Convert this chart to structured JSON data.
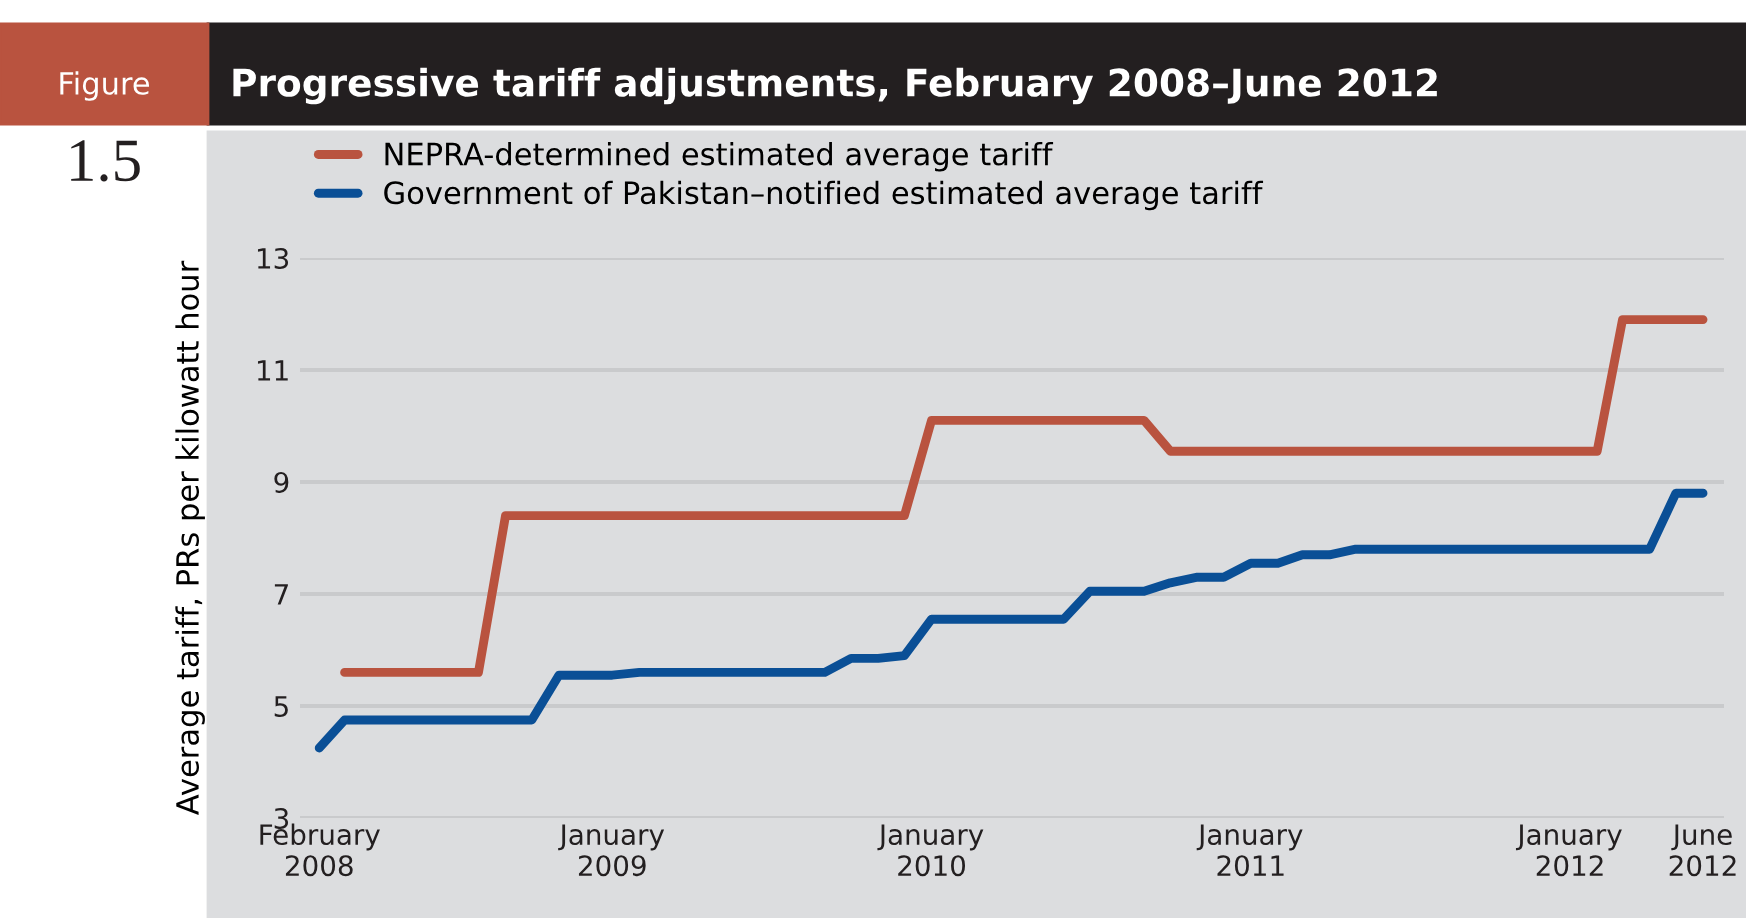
{
  "chart_data": {
    "type": "line",
    "title": "Progressive tariff adjustments, February 2008–June 2012",
    "annotations": [
      "Figure",
      "1.5"
    ],
    "ylabel": "Average tariff, PRs per kilowatt hour",
    "series": [
      {
        "name": "NEPRA-determined estimated average tariff",
        "color": "#b9533f",
        "x": [
          "2008-03",
          "2008-04",
          "2008-05",
          "2008-06",
          "2008-07",
          "2008-08",
          "2008-09",
          "2008-10",
          "2008-11",
          "2008-12",
          "2009-01",
          "2009-02",
          "2009-03",
          "2009-04",
          "2009-05",
          "2009-06",
          "2009-07",
          "2009-08",
          "2009-09",
          "2009-10",
          "2009-11",
          "2009-12",
          "2010-01",
          "2010-02",
          "2010-03",
          "2010-04",
          "2010-05",
          "2010-06",
          "2010-07",
          "2010-08",
          "2010-09",
          "2010-10",
          "2010-11",
          "2010-12",
          "2011-01",
          "2011-02",
          "2011-03",
          "2011-04",
          "2011-05",
          "2011-06",
          "2011-07",
          "2011-08",
          "2011-09",
          "2011-10",
          "2011-11",
          "2011-12",
          "2012-01",
          "2012-02",
          "2012-03",
          "2012-04",
          "2012-05",
          "2012-06"
        ],
        "values": [
          5.6,
          5.6,
          5.6,
          5.6,
          5.6,
          5.6,
          8.4,
          8.4,
          8.4,
          8.4,
          8.4,
          8.4,
          8.4,
          8.4,
          8.4,
          8.4,
          8.4,
          8.4,
          8.4,
          8.4,
          8.4,
          8.4,
          10.1,
          10.1,
          10.1,
          10.1,
          10.1,
          10.1,
          10.1,
          10.1,
          10.1,
          9.55,
          9.55,
          9.55,
          9.55,
          9.55,
          9.55,
          9.55,
          9.55,
          9.55,
          9.55,
          9.55,
          9.55,
          9.55,
          9.55,
          9.55,
          9.55,
          9.55,
          11.9,
          11.9,
          11.9,
          11.9
        ]
      },
      {
        "name": "Government of Pakistan–notified estimated average tariff",
        "color": "#0a4f96",
        "x": [
          "2008-02",
          "2008-03",
          "2008-04",
          "2008-05",
          "2008-06",
          "2008-07",
          "2008-08",
          "2008-09",
          "2008-10",
          "2008-11",
          "2008-12",
          "2009-01",
          "2009-02",
          "2009-03",
          "2009-04",
          "2009-05",
          "2009-06",
          "2009-07",
          "2009-08",
          "2009-09",
          "2009-10",
          "2009-11",
          "2009-12",
          "2010-01",
          "2010-02",
          "2010-03",
          "2010-04",
          "2010-05",
          "2010-06",
          "2010-07",
          "2010-08",
          "2010-09",
          "2010-10",
          "2010-11",
          "2010-12",
          "2011-01",
          "2011-02",
          "2011-03",
          "2011-04",
          "2011-05",
          "2011-06",
          "2011-07",
          "2011-08",
          "2011-09",
          "2011-10",
          "2011-11",
          "2011-12",
          "2012-01",
          "2012-02",
          "2012-03",
          "2012-04",
          "2012-05",
          "2012-06"
        ],
        "values": [
          4.25,
          4.75,
          4.75,
          4.75,
          4.75,
          4.75,
          4.75,
          4.75,
          4.75,
          5.55,
          5.55,
          5.55,
          5.6,
          5.6,
          5.6,
          5.6,
          5.6,
          5.6,
          5.6,
          5.6,
          5.85,
          5.85,
          5.9,
          6.55,
          6.55,
          6.55,
          6.55,
          6.55,
          6.55,
          7.05,
          7.05,
          7.05,
          7.2,
          7.3,
          7.3,
          7.55,
          7.55,
          7.7,
          7.7,
          7.8,
          7.8,
          7.8,
          7.8,
          7.8,
          7.8,
          7.8,
          7.8,
          7.8,
          7.8,
          7.8,
          7.8,
          8.8,
          8.8
        ]
      }
    ],
    "xlim": [
      "2008-01-10",
      "2012-06-25"
    ],
    "xticks": [
      {
        "value": "2008-02",
        "label": "February\n2008"
      },
      {
        "value": "2009-01",
        "label": "January\n2009"
      },
      {
        "value": "2010-01",
        "label": "January\n2010"
      },
      {
        "value": "2011-01",
        "label": "January\n2011"
      },
      {
        "value": "2012-01",
        "label": "January\n2012"
      },
      {
        "value": "2012-06",
        "label": "June\n2012"
      }
    ],
    "ylim": [
      3,
      13
    ],
    "yticks": [
      3,
      5,
      7,
      9,
      11,
      13
    ],
    "grid": "y",
    "legend": "top left",
    "line_style": "solid",
    "marker": "none"
  }
}
